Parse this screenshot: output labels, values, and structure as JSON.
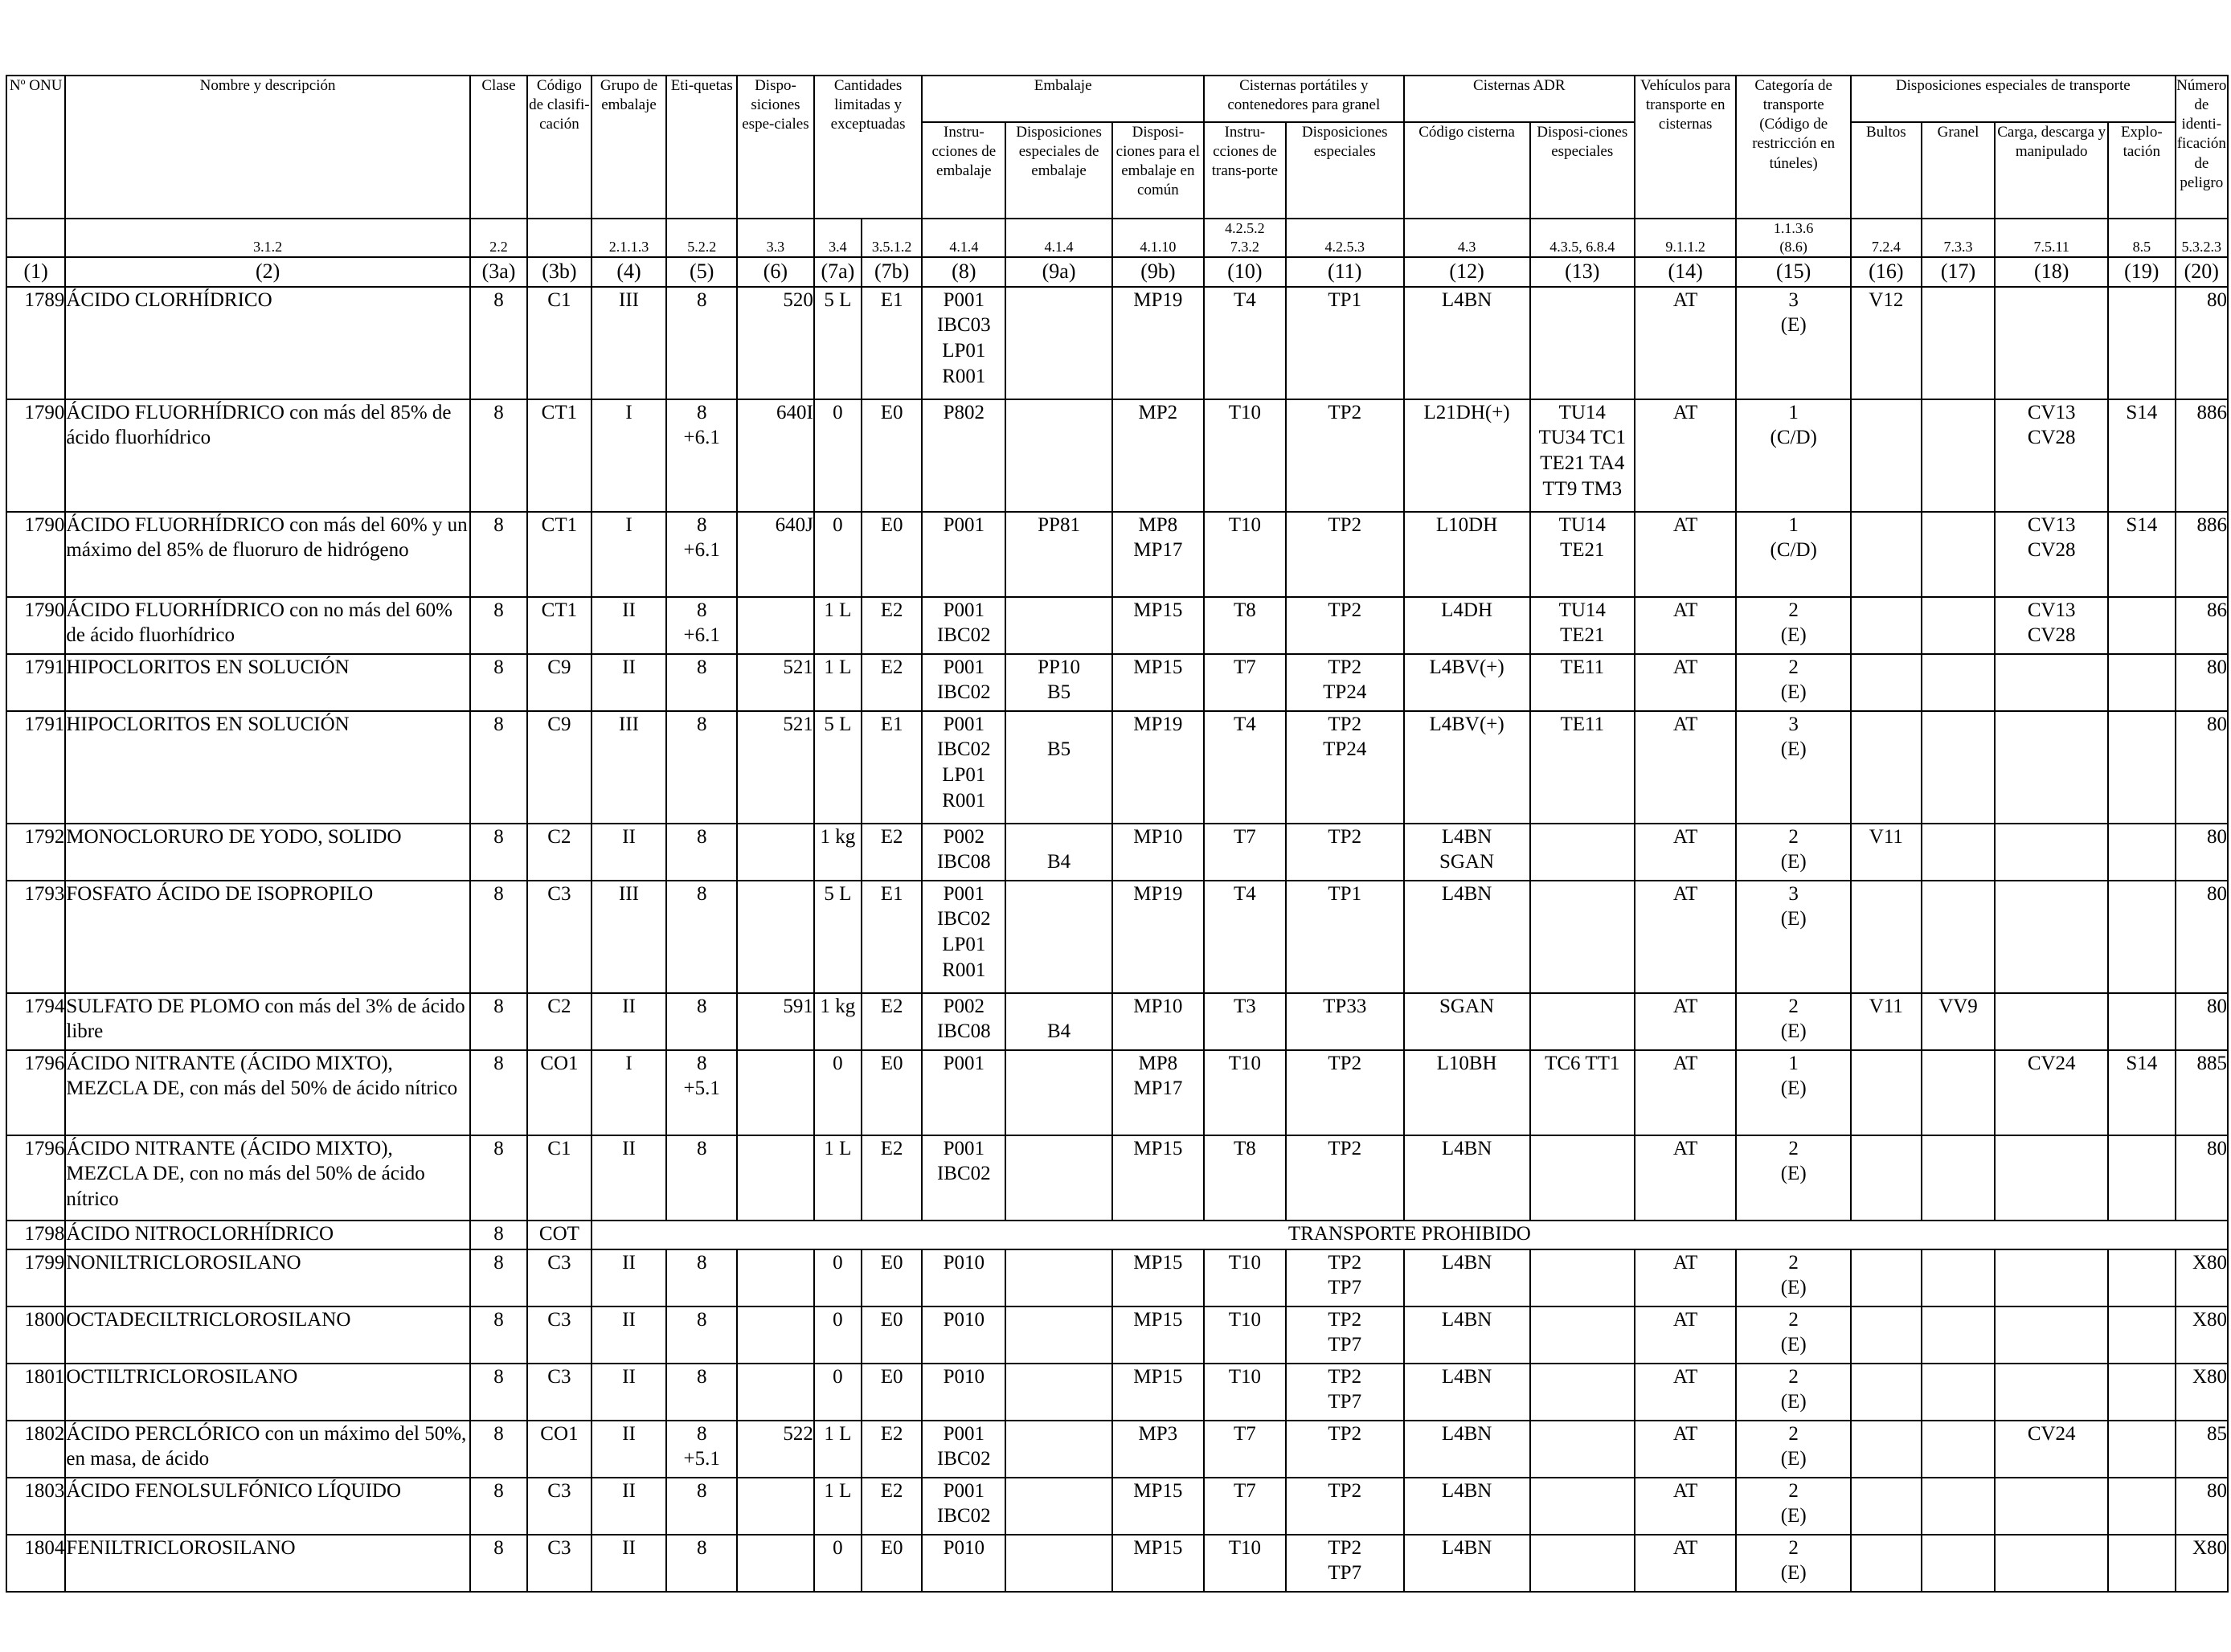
{
  "table": {
    "header": {
      "g_un": "Nº ONU",
      "g_name": "Nombre y descripción",
      "g_clase": "Clase",
      "g_codigo": "Código de clasifi-cación",
      "g_grupo": "Grupo de embalaje",
      "g_etiq": "Eti-quetas",
      "g_disp": "Dispo-siciones espe-ciales",
      "g_cant": "Cantidades limitadas y exceptuadas",
      "g_emb": "Embalaje",
      "g_cist_port": "Cisternas portátiles y contenedores para granel",
      "g_cist_adr": "Cisternas ADR",
      "g_veh": "Vehículos para transporte en cisternas",
      "g_cat": "Categoría de transporte (Código de restricción en túneles)",
      "g_dispesp": "Disposiciones especiales de transporte",
      "g_numid": "Número de identi-ficación de peligro",
      "s_instr": "Instru-cciones de embalaje",
      "s_dispemb": "Disposiciones especiales de embalaje",
      "s_dispcomun": "Disposi-ciones para el embalaje en común",
      "s_instrtrans": "Instru-cciones de trans-porte",
      "s_dispesp2": "Disposiciones especiales",
      "s_codcist": "Código cisterna",
      "s_dispesp3": "Disposi-ciones especiales",
      "s_bultos": "Bultos",
      "s_granel": "Granel",
      "s_carga": "Carga, descarga y manipulado",
      "s_explo": "Explo-tación",
      "refs": [
        "",
        "3.1.2",
        "2.2",
        "",
        "2.1.1.3",
        "5.2.2",
        "3.3",
        "3.4",
        "3.5.1.2",
        "4.1.4",
        "4.1.4",
        "4.1.10",
        "4.2.5.2\n7.3.2",
        "4.2.5.3",
        "4.3",
        "4.3.5, 6.8.4",
        "9.1.1.2",
        "1.1.3.6\n(8.6)",
        "7.2.4",
        "7.3.3",
        "7.5.11",
        "8.5",
        "5.3.2.3"
      ],
      "col_index": [
        "(1)",
        "(2)",
        "(3a)",
        "(3b)",
        "(4)",
        "(5)",
        "(6)",
        "(7a)",
        "(7b)",
        "(8)",
        "(9a)",
        "(9b)",
        "(10)",
        "(11)",
        "(12)",
        "(13)",
        "(14)",
        "(15)",
        "(16)",
        "(17)",
        "(18)",
        "(19)",
        "(20)"
      ]
    },
    "rows": [
      [
        "1789",
        "ÁCIDO CLORHÍDRICO",
        "8",
        "C1",
        "III",
        "8",
        "520",
        "5 L",
        "E1",
        "P001\nIBC03\nLP01\nR001",
        "",
        "MP19",
        "T4",
        "TP1",
        "L4BN",
        "",
        "AT",
        "3\n(E)",
        "V12",
        "",
        "",
        "",
        "80"
      ],
      [
        "1790",
        "ÁCIDO FLUORHÍDRICO con más del 85% de ácido fluorhídrico",
        "8",
        "CT1",
        "I",
        "8\n+6.1",
        "640I",
        "0",
        "E0",
        "P802",
        "",
        "MP2",
        "T10",
        "TP2",
        "L21DH(+)",
        "TU14\nTU34 TC1\nTE21 TA4\nTT9 TM3",
        "AT",
        "1\n(C/D)",
        "",
        "",
        "CV13\nCV28",
        "S14",
        "886"
      ],
      [
        "1790",
        "ÁCIDO FLUORHÍDRICO con más del 60% y un máximo del 85% de fluoruro de hidrógeno",
        "8",
        "CT1",
        "I",
        "8\n+6.1",
        "640J",
        "0",
        "E0",
        "P001",
        "PP81",
        "MP8\nMP17",
        "T10",
        "TP2",
        "L10DH",
        "TU14\nTE21",
        "AT",
        "1\n(C/D)",
        "",
        "",
        "CV13\nCV28",
        "S14",
        "886"
      ],
      [
        "1790",
        "ÁCIDO FLUORHÍDRICO con no más del 60% de ácido fluorhídrico",
        "8",
        "CT1",
        "II",
        "8\n+6.1",
        "",
        "1 L",
        "E2",
        "P001\nIBC02",
        "",
        "MP15",
        "T8",
        "TP2",
        "L4DH",
        "TU14\nTE21",
        "AT",
        "2\n(E)",
        "",
        "",
        "CV13\nCV28",
        "",
        "86"
      ],
      [
        "1791",
        "HIPOCLORITOS EN SOLUCIÓN",
        "8",
        "C9",
        "II",
        "8",
        "521",
        "1 L",
        "E2",
        "P001\nIBC02",
        "PP10\nB5",
        "MP15",
        "T7",
        "TP2\nTP24",
        "L4BV(+)",
        "TE11",
        "AT",
        "2\n(E)",
        "",
        "",
        "",
        "",
        "80"
      ],
      [
        "1791",
        "HIPOCLORITOS EN SOLUCIÓN",
        "8",
        "C9",
        "III",
        "8",
        "521",
        "5 L",
        "E1",
        "P001\nIBC02\nLP01\nR001",
        "\nB5",
        "MP19",
        "T4",
        "TP2\nTP24",
        "L4BV(+)",
        "TE11",
        "AT",
        "3\n(E)",
        "",
        "",
        "",
        "",
        "80"
      ],
      [
        "1792",
        "MONOCLORURO DE YODO, SOLIDO",
        "8",
        "C2",
        "II",
        "8",
        "",
        "1 kg",
        "E2",
        "P002\nIBC08",
        "\nB4",
        "MP10",
        "T7",
        "TP2",
        "L4BN\nSGAN",
        "",
        "AT",
        "2\n(E)",
        "V11",
        "",
        "",
        "",
        "80"
      ],
      [
        "1793",
        "FOSFATO ÁCIDO DE ISOPROPILO",
        "8",
        "C3",
        "III",
        "8",
        "",
        "5 L",
        "E1",
        "P001\nIBC02\nLP01\nR001",
        "",
        "MP19",
        "T4",
        "TP1",
        "L4BN",
        "",
        "AT",
        "3\n(E)",
        "",
        "",
        "",
        "",
        "80"
      ],
      [
        "1794",
        "SULFATO DE PLOMO con más del 3% de ácido libre",
        "8",
        "C2",
        "II",
        "8",
        "591",
        "1 kg",
        "E2",
        "P002\nIBC08",
        "\nB4",
        "MP10",
        "T3",
        "TP33",
        "SGAN",
        "",
        "AT",
        "2\n(E)",
        "V11",
        "VV9",
        "",
        "",
        "80"
      ],
      [
        "1796",
        "ÁCIDO NITRANTE (ÁCIDO MIXTO), MEZCLA DE, con más del 50% de ácido nítrico",
        "8",
        "CO1",
        "I",
        "8\n+5.1",
        "",
        "0",
        "E0",
        "P001",
        "",
        "MP8\nMP17",
        "T10",
        "TP2",
        "L10BH",
        "TC6 TT1",
        "AT",
        "1\n(E)",
        "",
        "",
        "CV24",
        "S14",
        "885"
      ],
      [
        "1796",
        "ÁCIDO NITRANTE (ÁCIDO MIXTO), MEZCLA DE, con no más del 50% de ácido nítrico",
        "8",
        "C1",
        "II",
        "8",
        "",
        "1 L",
        "E2",
        "P001\nIBC02",
        "",
        "MP15",
        "T8",
        "TP2",
        "L4BN",
        "",
        "AT",
        "2\n(E)",
        "",
        "",
        "",
        "",
        "80"
      ],
      [
        "1798",
        "ÁCIDO NITROCLORHÍDRICO",
        "8",
        "COT",
        "TRANSPORTE PROHIBIDO"
      ],
      [
        "1799",
        "NONILTRICLOROSILANO",
        "8",
        "C3",
        "II",
        "8",
        "",
        "0",
        "E0",
        "P010",
        "",
        "MP15",
        "T10",
        "TP2\nTP7",
        "L4BN",
        "",
        "AT",
        "2\n(E)",
        "",
        "",
        "",
        "",
        "X80"
      ],
      [
        "1800",
        "OCTADECILTRICLOROSILANO",
        "8",
        "C3",
        "II",
        "8",
        "",
        "0",
        "E0",
        "P010",
        "",
        "MP15",
        "T10",
        "TP2\nTP7",
        "L4BN",
        "",
        "AT",
        "2\n(E)",
        "",
        "",
        "",
        "",
        "X80"
      ],
      [
        "1801",
        "OCTILTRICLOROSILANO",
        "8",
        "C3",
        "II",
        "8",
        "",
        "0",
        "E0",
        "P010",
        "",
        "MP15",
        "T10",
        "TP2\nTP7",
        "L4BN",
        "",
        "AT",
        "2\n(E)",
        "",
        "",
        "",
        "",
        "X80"
      ],
      [
        "1802",
        "ÁCIDO PERCLÓRICO con un máximo del 50%, en masa, de ácido",
        "8",
        "CO1",
        "II",
        "8\n+5.1",
        "522",
        "1 L",
        "E2",
        "P001\nIBC02",
        "",
        "MP3",
        "T7",
        "TP2",
        "L4BN",
        "",
        "AT",
        "2\n(E)",
        "",
        "",
        "CV24",
        "",
        "85"
      ],
      [
        "1803",
        "ÁCIDO FENOLSULFÓNICO LÍQUIDO",
        "8",
        "C3",
        "II",
        "8",
        "",
        "1 L",
        "E2",
        "P001\nIBC02",
        "",
        "MP15",
        "T7",
        "TP2",
        "L4BN",
        "",
        "AT",
        "2\n(E)",
        "",
        "",
        "",
        "",
        "80"
      ],
      [
        "1804",
        "FENILTRICLOROSILANO",
        "8",
        "C3",
        "II",
        "8",
        "",
        "0",
        "E0",
        "P010",
        "",
        "MP15",
        "T10",
        "TP2\nTP7",
        "L4BN",
        "",
        "AT",
        "2\n(E)",
        "",
        "",
        "",
        "",
        "X80"
      ]
    ]
  }
}
